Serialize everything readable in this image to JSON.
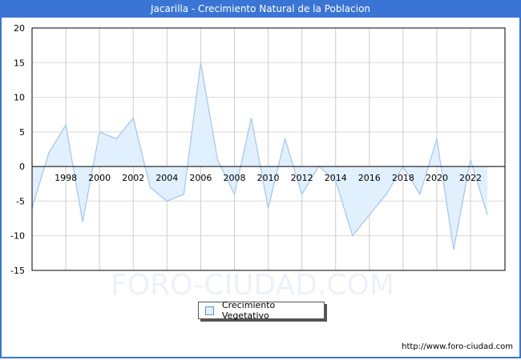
{
  "header": {
    "title": "Jacarilla - Crecimiento Natural de la Poblacion"
  },
  "legend": {
    "label": "Crecimiento Vegetativo"
  },
  "footer": {
    "url": "http://www.foro-ciudad.com"
  },
  "watermark": {
    "text": "FORO-CIUDAD.COM"
  },
  "colors": {
    "titlebar": "#3a75d6",
    "area_fill": "#e1f0fd",
    "line": "#a3c4f0",
    "grid": "#d9d9d9"
  },
  "chart_data": {
    "type": "area",
    "title": "Jacarilla - Crecimiento Natural de la Poblacion",
    "xlabel": "",
    "ylabel": "",
    "ylim": [
      -15,
      20
    ],
    "yticks": [
      20,
      15,
      10,
      5,
      0,
      -5,
      -10,
      -15
    ],
    "xtick_labels": [
      "1998",
      "2000",
      "2002",
      "2004",
      "2006",
      "2008",
      "2010",
      "2012",
      "2014",
      "2016",
      "2018",
      "2020",
      "2022"
    ],
    "grid": true,
    "legend_position": "bottom-center",
    "x": [
      1996,
      1997,
      1998,
      1999,
      2000,
      2001,
      2002,
      2003,
      2004,
      2005,
      2006,
      2007,
      2008,
      2009,
      2010,
      2011,
      2012,
      2013,
      2014,
      2015,
      2016,
      2017,
      2018,
      2019,
      2020,
      2021,
      2022,
      2023
    ],
    "series": [
      {
        "name": "Crecimiento Vegetativo",
        "values": [
          -6,
          2,
          6,
          -8,
          5,
          4,
          7,
          -3,
          -5,
          -4,
          15,
          1,
          -4,
          7,
          -6,
          4,
          -4,
          0,
          -2,
          -10,
          -7,
          -4,
          0,
          -4,
          4,
          -12,
          1,
          -7
        ]
      }
    ]
  }
}
